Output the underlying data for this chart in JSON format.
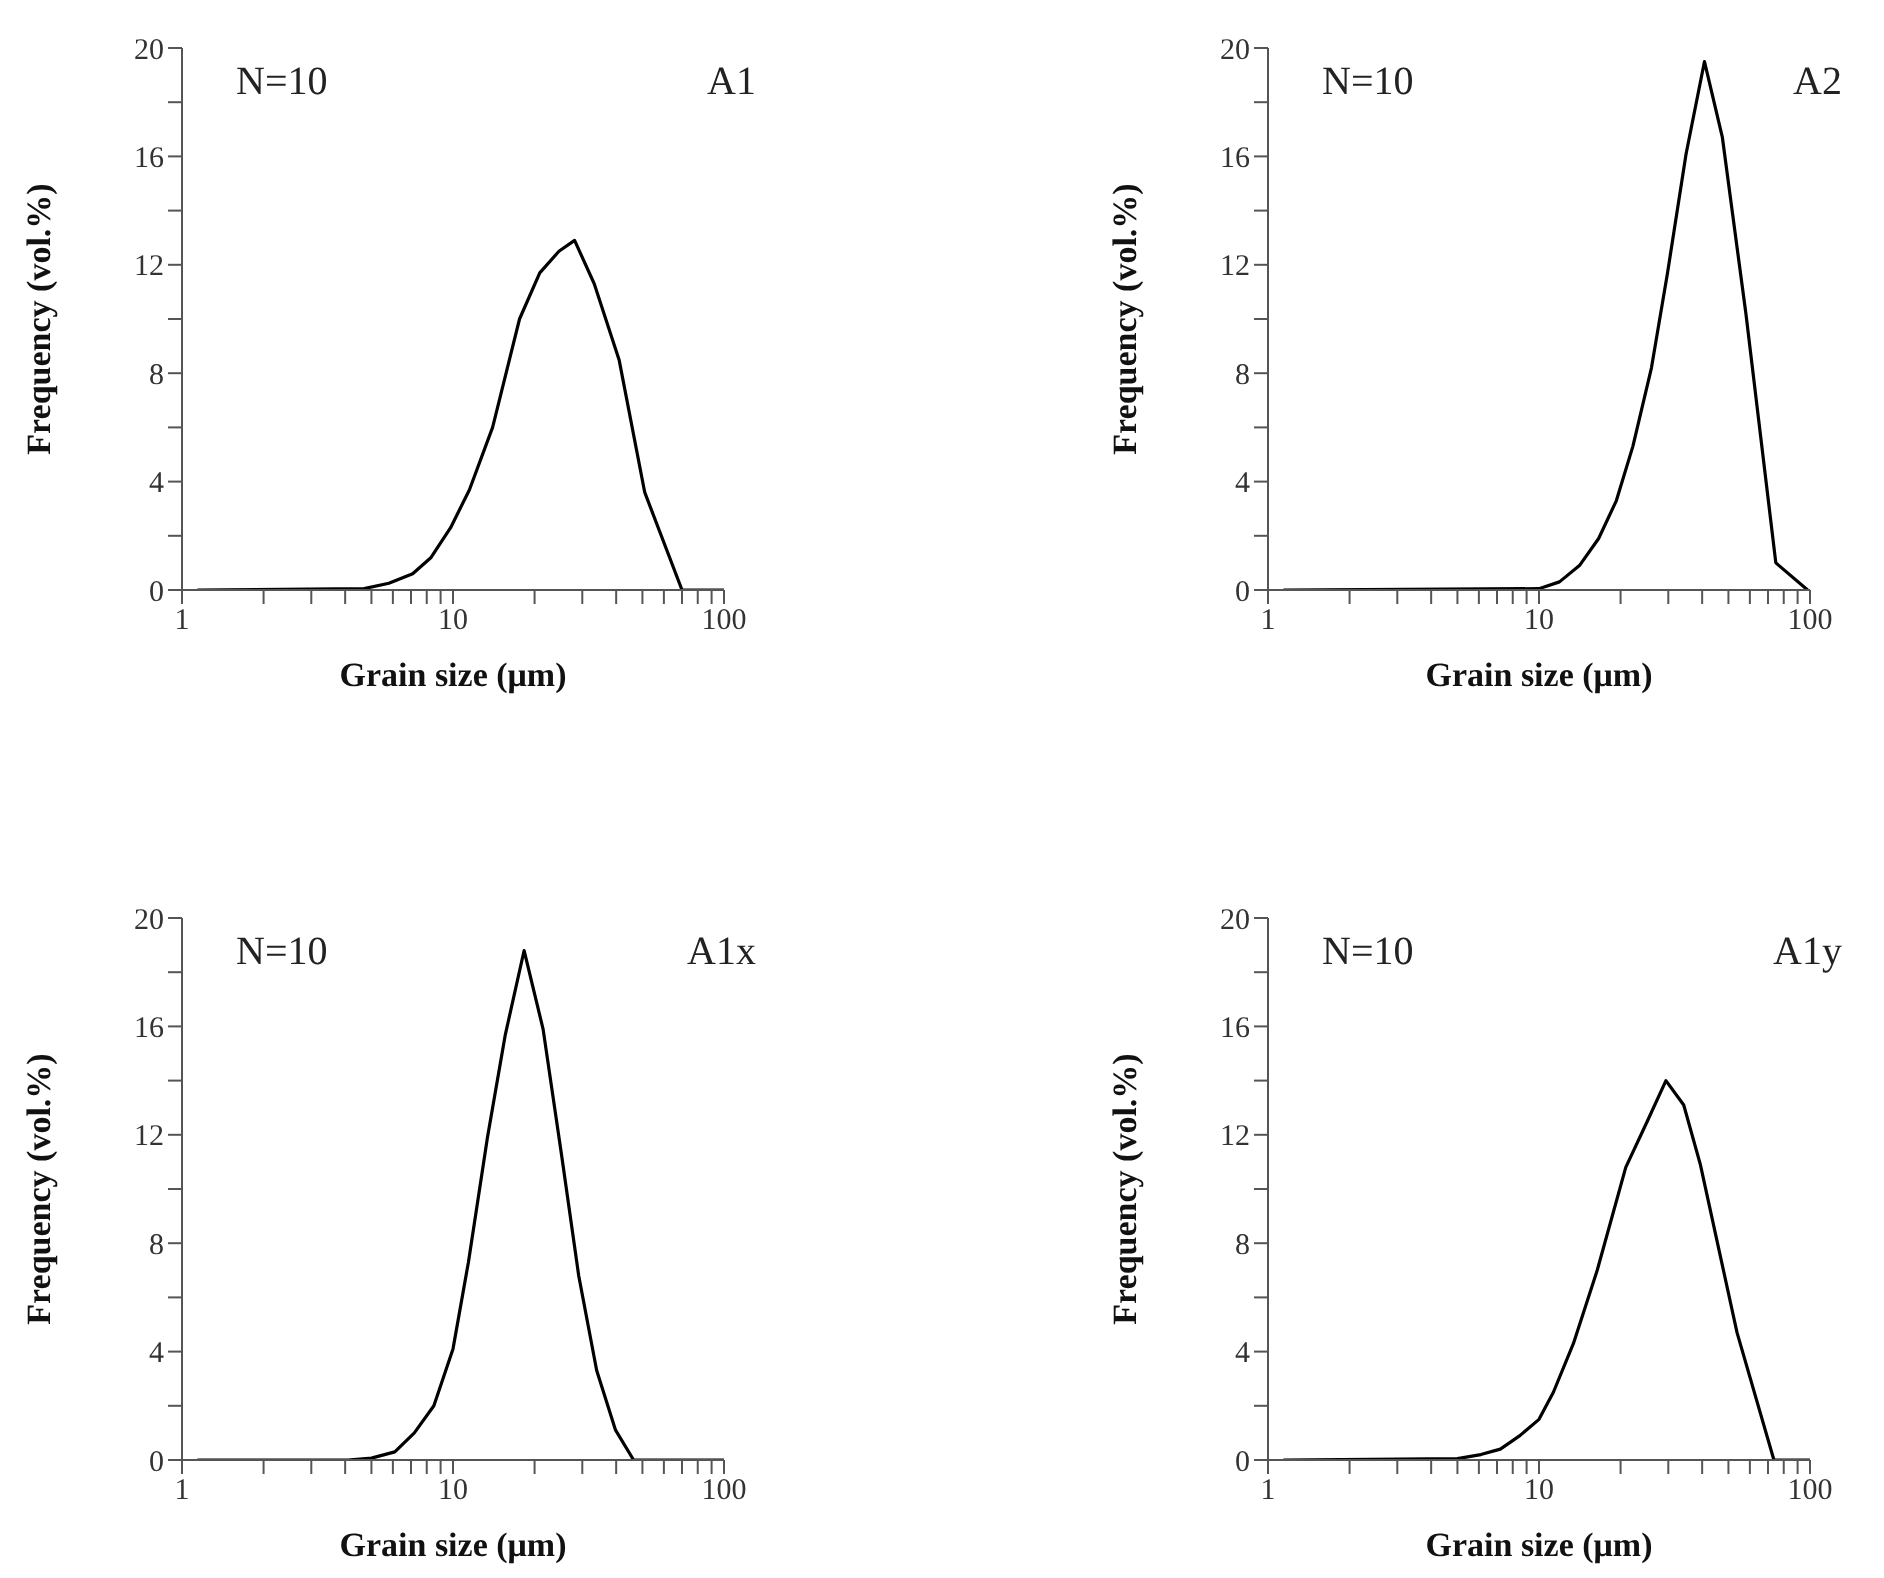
{
  "chart_data": [
    {
      "type": "line",
      "title": "A1",
      "xlabel": "Grain size (μm)",
      "ylabel": "Frequency (vol.%)",
      "annotations": [
        "N=10"
      ],
      "log": "x",
      "xlim": [
        1,
        100
      ],
      "xticks": [
        1,
        {
          "value": 2,
          "label": null
        },
        {
          "value": 3,
          "label": null
        },
        {
          "value": 4,
          "label": null
        },
        {
          "value": 5,
          "label": null
        },
        {
          "value": 6,
          "label": null
        },
        {
          "value": 7,
          "label": null
        },
        {
          "value": 8,
          "label": null
        },
        {
          "value": 9,
          "label": null
        },
        10,
        {
          "value": 20,
          "label": null
        },
        {
          "value": 30,
          "label": null
        },
        {
          "value": 40,
          "label": null
        },
        {
          "value": 50,
          "label": null
        },
        {
          "value": 60,
          "label": null
        },
        {
          "value": 70,
          "label": null
        },
        {
          "value": 80,
          "label": null
        },
        {
          "value": 90,
          "label": null
        },
        100
      ],
      "ylim": [
        0,
        20
      ],
      "yticks": [
        0,
        {
          "value": 2,
          "label": null
        },
        4,
        {
          "value": 6,
          "label": null
        },
        8,
        {
          "value": 10,
          "label": null
        },
        12,
        {
          "value": 14,
          "label": null
        },
        16,
        {
          "value": 18,
          "label": null
        },
        20
      ],
      "series": [
        {
          "color": "#000000",
          "x": [
            1.14,
            4.7,
            5.8,
            7.1,
            8.3,
            9.8,
            11.5,
            14,
            17.6,
            20.9,
            24.6,
            28.1,
            33.2,
            41,
            51,
            70,
            100
          ],
          "values": [
            0,
            0.05,
            0.25,
            0.6,
            1.2,
            2.3,
            3.7,
            6,
            10,
            11.7,
            12.5,
            12.9,
            11.3,
            8.5,
            3.6,
            0,
            0
          ]
        }
      ]
    },
    {
      "type": "line",
      "title": "A2",
      "xlabel": "Grain size (μm)",
      "ylabel": "Frequency (vol.%)",
      "annotations": [
        "N=10"
      ],
      "log": "x",
      "xlim": [
        1,
        100
      ],
      "xticks": [
        1,
        {
          "value": 2,
          "label": null
        },
        {
          "value": 3,
          "label": null
        },
        {
          "value": 4,
          "label": null
        },
        {
          "value": 5,
          "label": null
        },
        {
          "value": 6,
          "label": null
        },
        {
          "value": 7,
          "label": null
        },
        {
          "value": 8,
          "label": null
        },
        {
          "value": 9,
          "label": null
        },
        10,
        {
          "value": 20,
          "label": null
        },
        {
          "value": 30,
          "label": null
        },
        {
          "value": 40,
          "label": null
        },
        {
          "value": 50,
          "label": null
        },
        {
          "value": 60,
          "label": null
        },
        {
          "value": 70,
          "label": null
        },
        {
          "value": 80,
          "label": null
        },
        {
          "value": 90,
          "label": null
        },
        100
      ],
      "ylim": [
        0,
        20
      ],
      "yticks": [
        0,
        {
          "value": 2,
          "label": null
        },
        4,
        {
          "value": 6,
          "label": null
        },
        8,
        {
          "value": 10,
          "label": null
        },
        12,
        {
          "value": 14,
          "label": null
        },
        16,
        {
          "value": 18,
          "label": null
        },
        20
      ],
      "series": [
        {
          "color": "#000000",
          "x": [
            1.14,
            10,
            11.9,
            14.1,
            16.6,
            19.3,
            22.2,
            26,
            29.8,
            34.9,
            40.8,
            47.5,
            58,
            74.8,
            98
          ],
          "values": [
            0,
            0.05,
            0.3,
            0.9,
            1.9,
            3.3,
            5.3,
            8.2,
            11.7,
            16.1,
            19.5,
            16.7,
            10.2,
            1,
            0
          ]
        }
      ]
    },
    {
      "type": "line",
      "title": "A1x",
      "xlabel": "Grain size (μm)",
      "ylabel": "Frequency (vol.%)",
      "annotations": [
        "N=10"
      ],
      "log": "x",
      "xlim": [
        1,
        100
      ],
      "xticks": [
        1,
        {
          "value": 2,
          "label": null
        },
        {
          "value": 3,
          "label": null
        },
        {
          "value": 4,
          "label": null
        },
        {
          "value": 5,
          "label": null
        },
        {
          "value": 6,
          "label": null
        },
        {
          "value": 7,
          "label": null
        },
        {
          "value": 8,
          "label": null
        },
        {
          "value": 9,
          "label": null
        },
        10,
        {
          "value": 20,
          "label": null
        },
        {
          "value": 30,
          "label": null
        },
        {
          "value": 40,
          "label": null
        },
        {
          "value": 50,
          "label": null
        },
        {
          "value": 60,
          "label": null
        },
        {
          "value": 70,
          "label": null
        },
        {
          "value": 80,
          "label": null
        },
        {
          "value": 90,
          "label": null
        },
        100
      ],
      "ylim": [
        0,
        20
      ],
      "yticks": [
        0,
        {
          "value": 2,
          "label": null
        },
        4,
        {
          "value": 6,
          "label": null
        },
        8,
        {
          "value": 10,
          "label": null
        },
        12,
        {
          "value": 14,
          "label": null
        },
        16,
        {
          "value": 18,
          "label": null
        },
        20
      ],
      "series": [
        {
          "color": "#000000",
          "x": [
            1.14,
            4.1,
            5,
            6.1,
            7.2,
            8.5,
            10,
            11.4,
            13.4,
            15.6,
            18.3,
            21.5,
            25.2,
            29.1,
            33.9,
            39.8,
            46.4,
            100
          ],
          "values": [
            0,
            0,
            0.07,
            0.3,
            1,
            2,
            4.1,
            7.3,
            11.9,
            15.7,
            18.8,
            15.9,
            11.2,
            6.8,
            3.3,
            1.1,
            0,
            0
          ]
        }
      ]
    },
    {
      "type": "line",
      "title": "A1y",
      "xlabel": "Grain size (μm)",
      "ylabel": "Frequency (vol.%)",
      "annotations": [
        "N=10"
      ],
      "log": "x",
      "xlim": [
        1,
        100
      ],
      "xticks": [
        1,
        {
          "value": 2,
          "label": null
        },
        {
          "value": 3,
          "label": null
        },
        {
          "value": 4,
          "label": null
        },
        {
          "value": 5,
          "label": null
        },
        {
          "value": 6,
          "label": null
        },
        {
          "value": 7,
          "label": null
        },
        {
          "value": 8,
          "label": null
        },
        {
          "value": 9,
          "label": null
        },
        10,
        {
          "value": 20,
          "label": null
        },
        {
          "value": 30,
          "label": null
        },
        {
          "value": 40,
          "label": null
        },
        {
          "value": 50,
          "label": null
        },
        {
          "value": 60,
          "label": null
        },
        {
          "value": 70,
          "label": null
        },
        {
          "value": 80,
          "label": null
        },
        {
          "value": 90,
          "label": null
        },
        100
      ],
      "ylim": [
        0,
        20
      ],
      "yticks": [
        0,
        {
          "value": 2,
          "label": null
        },
        4,
        {
          "value": 6,
          "label": null
        },
        8,
        {
          "value": 10,
          "label": null
        },
        12,
        {
          "value": 14,
          "label": null
        },
        16,
        {
          "value": 18,
          "label": null
        },
        20
      ],
      "series": [
        {
          "color": "#000000",
          "x": [
            1.14,
            5,
            6.1,
            7.2,
            8.5,
            10,
            11.3,
            13.4,
            16.4,
            20.9,
            25.1,
            29.4,
            34.2,
            39.4,
            53.8,
            73.6,
            100
          ],
          "values": [
            0,
            0.05,
            0.2,
            0.4,
            0.9,
            1.5,
            2.5,
            4.3,
            7,
            10.8,
            12.5,
            14,
            13.1,
            10.9,
            4.7,
            0,
            0
          ]
        }
      ]
    }
  ]
}
